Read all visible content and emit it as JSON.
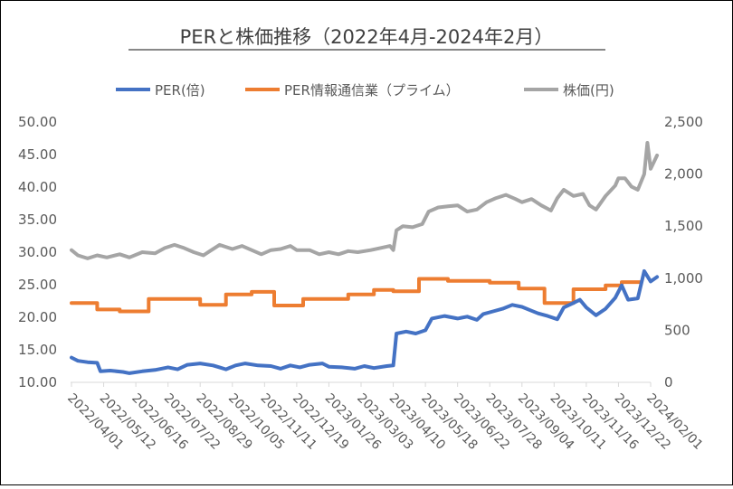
{
  "chart_data": {
    "type": "line",
    "title": "PERと株価推移（2022年4月-2024年2月）",
    "x_tick_labels": [
      "2022/04/01",
      "2022/05/12",
      "2022/06/16",
      "2022/07/22",
      "2022/08/29",
      "2022/10/05",
      "2022/11/11",
      "2022/12/19",
      "2023/01/26",
      "2023/03/03",
      "2023/04/10",
      "2023/05/18",
      "2023/06/22",
      "2023/07/28",
      "2023/09/04",
      "2023/10/11",
      "2023/11/16",
      "2023/12/22",
      "2024/02/01"
    ],
    "y_left": {
      "min": 10,
      "max": 50,
      "ticks": [
        "10.00",
        "15.00",
        "20.00",
        "25.00",
        "30.00",
        "35.00",
        "40.00",
        "45.00",
        "50.00"
      ]
    },
    "y_right": {
      "min": 0,
      "max": 2500,
      "ticks": [
        "0",
        "500",
        "1,000",
        "1,500",
        "2,000",
        "2,500"
      ]
    },
    "legend_position": "top",
    "series": [
      {
        "name": "PER(倍)",
        "axis": "left",
        "color": "#4472C4",
        "points": [
          [
            0,
            13.8
          ],
          [
            0.2,
            13.3
          ],
          [
            0.5,
            13.1
          ],
          [
            0.8,
            13.0
          ],
          [
            0.9,
            11.7
          ],
          [
            1.2,
            11.8
          ],
          [
            1.6,
            11.6
          ],
          [
            1.8,
            11.4
          ],
          [
            2.2,
            11.7
          ],
          [
            2.6,
            11.9
          ],
          [
            3.0,
            12.3
          ],
          [
            3.3,
            12.0
          ],
          [
            3.6,
            12.7
          ],
          [
            4.0,
            12.9
          ],
          [
            4.4,
            12.6
          ],
          [
            4.6,
            12.3
          ],
          [
            4.8,
            12.0
          ],
          [
            5.1,
            12.6
          ],
          [
            5.4,
            12.9
          ],
          [
            5.8,
            12.6
          ],
          [
            6.2,
            12.5
          ],
          [
            6.5,
            12.1
          ],
          [
            6.8,
            12.6
          ],
          [
            7.1,
            12.3
          ],
          [
            7.4,
            12.7
          ],
          [
            7.8,
            12.9
          ],
          [
            8.0,
            12.4
          ],
          [
            8.4,
            12.3
          ],
          [
            8.8,
            12.1
          ],
          [
            9.1,
            12.5
          ],
          [
            9.4,
            12.2
          ],
          [
            9.8,
            12.5
          ],
          [
            10.0,
            12.6
          ],
          [
            10.1,
            17.5
          ],
          [
            10.4,
            17.8
          ],
          [
            10.7,
            17.5
          ],
          [
            11.0,
            18.0
          ],
          [
            11.2,
            19.8
          ],
          [
            11.6,
            20.2
          ],
          [
            12.0,
            19.8
          ],
          [
            12.3,
            20.1
          ],
          [
            12.6,
            19.6
          ],
          [
            12.8,
            20.5
          ],
          [
            13.1,
            20.9
          ],
          [
            13.4,
            21.3
          ],
          [
            13.7,
            21.9
          ],
          [
            14.0,
            21.6
          ],
          [
            14.3,
            21.0
          ],
          [
            14.5,
            20.6
          ],
          [
            14.8,
            20.2
          ],
          [
            15.1,
            19.7
          ],
          [
            15.3,
            21.5
          ],
          [
            15.6,
            22.2
          ],
          [
            15.8,
            22.7
          ],
          [
            16.0,
            21.5
          ],
          [
            16.3,
            20.3
          ],
          [
            16.6,
            21.3
          ],
          [
            16.9,
            23.0
          ],
          [
            17.1,
            24.9
          ],
          [
            17.3,
            22.7
          ],
          [
            17.6,
            22.9
          ],
          [
            17.8,
            27.1
          ],
          [
            18.0,
            25.5
          ],
          [
            18.2,
            26.2
          ]
        ]
      },
      {
        "name": "PER情報通信業（プライム）",
        "axis": "left",
        "color": "#ED7D31",
        "points": [
          [
            0,
            22.2
          ],
          [
            0.8,
            22.2
          ],
          [
            0.8,
            21.2
          ],
          [
            1.5,
            21.2
          ],
          [
            1.5,
            20.9
          ],
          [
            2.4,
            20.9
          ],
          [
            2.4,
            22.8
          ],
          [
            4.0,
            22.8
          ],
          [
            4.0,
            21.9
          ],
          [
            4.8,
            21.9
          ],
          [
            4.8,
            23.5
          ],
          [
            5.6,
            23.5
          ],
          [
            5.6,
            23.9
          ],
          [
            6.3,
            23.9
          ],
          [
            6.3,
            21.8
          ],
          [
            7.2,
            21.8
          ],
          [
            7.2,
            22.8
          ],
          [
            8.6,
            22.8
          ],
          [
            8.6,
            23.5
          ],
          [
            9.4,
            23.5
          ],
          [
            9.4,
            24.2
          ],
          [
            10.0,
            24.2
          ],
          [
            10.0,
            24.0
          ],
          [
            10.8,
            24.0
          ],
          [
            10.8,
            25.9
          ],
          [
            11.7,
            25.9
          ],
          [
            11.7,
            25.6
          ],
          [
            13.0,
            25.6
          ],
          [
            13.0,
            25.3
          ],
          [
            13.9,
            25.3
          ],
          [
            13.9,
            24.4
          ],
          [
            14.7,
            24.4
          ],
          [
            14.7,
            22.2
          ],
          [
            15.6,
            22.2
          ],
          [
            15.6,
            24.3
          ],
          [
            16.6,
            24.3
          ],
          [
            16.6,
            24.9
          ],
          [
            17.1,
            24.9
          ],
          [
            17.1,
            25.4
          ],
          [
            17.7,
            25.4
          ]
        ]
      },
      {
        "name": "株価(円)",
        "axis": "right",
        "color": "#A5A5A5",
        "points": [
          [
            0,
            1270
          ],
          [
            0.2,
            1220
          ],
          [
            0.5,
            1190
          ],
          [
            0.8,
            1220
          ],
          [
            1.1,
            1200
          ],
          [
            1.5,
            1230
          ],
          [
            1.8,
            1200
          ],
          [
            2.2,
            1250
          ],
          [
            2.6,
            1240
          ],
          [
            2.9,
            1290
          ],
          [
            3.2,
            1320
          ],
          [
            3.5,
            1290
          ],
          [
            3.8,
            1250
          ],
          [
            4.1,
            1220
          ],
          [
            4.3,
            1260
          ],
          [
            4.6,
            1320
          ],
          [
            5.0,
            1280
          ],
          [
            5.3,
            1310
          ],
          [
            5.6,
            1270
          ],
          [
            5.9,
            1230
          ],
          [
            6.2,
            1270
          ],
          [
            6.5,
            1280
          ],
          [
            6.8,
            1310
          ],
          [
            7.0,
            1270
          ],
          [
            7.4,
            1270
          ],
          [
            7.7,
            1230
          ],
          [
            8.0,
            1250
          ],
          [
            8.3,
            1230
          ],
          [
            8.6,
            1260
          ],
          [
            8.9,
            1250
          ],
          [
            9.3,
            1270
          ],
          [
            9.6,
            1290
          ],
          [
            9.9,
            1310
          ],
          [
            10.0,
            1270
          ],
          [
            10.1,
            1460
          ],
          [
            10.3,
            1500
          ],
          [
            10.6,
            1490
          ],
          [
            10.9,
            1520
          ],
          [
            11.1,
            1640
          ],
          [
            11.4,
            1680
          ],
          [
            11.7,
            1690
          ],
          [
            12.0,
            1700
          ],
          [
            12.3,
            1640
          ],
          [
            12.6,
            1660
          ],
          [
            12.9,
            1730
          ],
          [
            13.2,
            1770
          ],
          [
            13.5,
            1800
          ],
          [
            13.8,
            1760
          ],
          [
            14.0,
            1730
          ],
          [
            14.3,
            1760
          ],
          [
            14.6,
            1700
          ],
          [
            14.9,
            1650
          ],
          [
            15.1,
            1770
          ],
          [
            15.3,
            1850
          ],
          [
            15.6,
            1790
          ],
          [
            15.9,
            1810
          ],
          [
            16.1,
            1700
          ],
          [
            16.3,
            1660
          ],
          [
            16.6,
            1790
          ],
          [
            16.9,
            1890
          ],
          [
            17.0,
            1960
          ],
          [
            17.2,
            1960
          ],
          [
            17.4,
            1880
          ],
          [
            17.6,
            1850
          ],
          [
            17.8,
            2000
          ],
          [
            17.9,
            2300
          ],
          [
            18.0,
            2050
          ],
          [
            18.2,
            2180
          ]
        ]
      }
    ]
  }
}
